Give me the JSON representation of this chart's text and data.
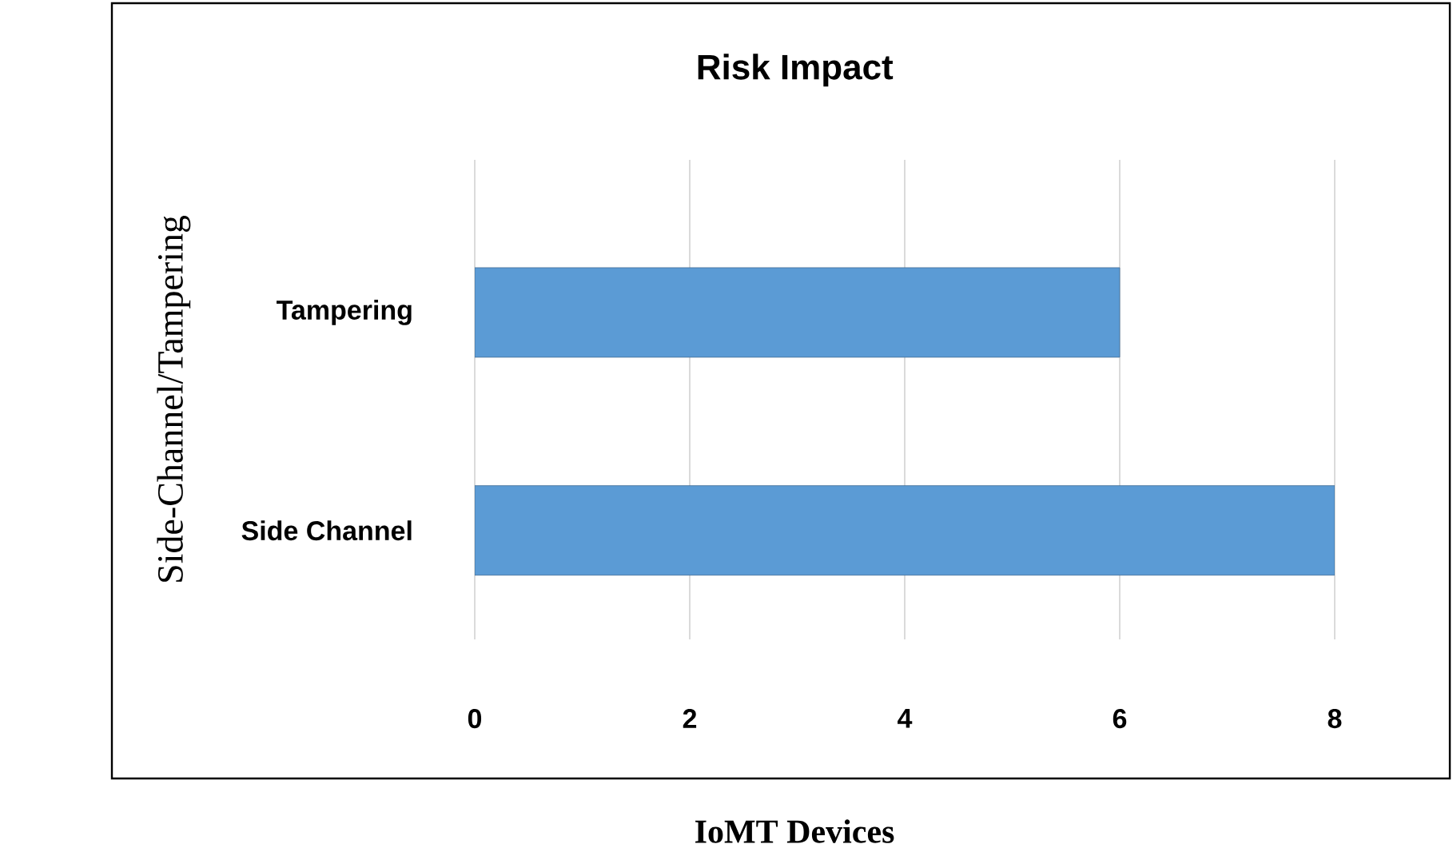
{
  "chart_data": {
    "type": "bar",
    "orientation": "horizontal",
    "title": "Risk Impact",
    "xlabel": "IoMT Devices",
    "ylabel": "Side-Channel/Tampering",
    "categories": [
      "Tampering",
      "Side Channel"
    ],
    "values": [
      6,
      8
    ],
    "color": "#5b9bd5",
    "xlim": [
      0,
      8
    ],
    "xticks": [
      0,
      2,
      4,
      6,
      8
    ],
    "grid": "x"
  }
}
